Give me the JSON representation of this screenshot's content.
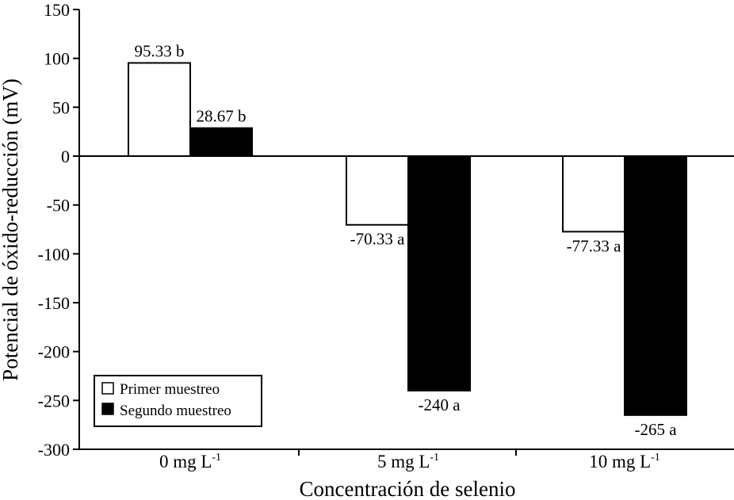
{
  "chart_data": {
    "type": "bar",
    "xlabel": "Concentración de selenio",
    "ylabel": "Potencial de óxido-reducción (mV)",
    "ylim": [
      -300,
      150
    ],
    "yticks": [
      150,
      100,
      50,
      0,
      -50,
      -100,
      -150,
      -200,
      -250,
      -300
    ],
    "grid": false,
    "legend_position": "bottom-left",
    "categories": [
      {
        "base": "0 mg L",
        "sup": "-1"
      },
      {
        "base": "5 mg L",
        "sup": "-1"
      },
      {
        "base": "10 mg L",
        "sup": "-1"
      }
    ],
    "series": [
      {
        "name": "Primer muestreo",
        "color": "#ffffff",
        "values": [
          95.33,
          -70.33,
          -77.33
        ],
        "labels": [
          "95.33 b",
          "-70.33 a",
          "-77.33 a"
        ]
      },
      {
        "name": "Segundo muestreo",
        "color": "#000000",
        "values": [
          28.67,
          -240,
          -265
        ],
        "labels": [
          "28.67 b",
          "-240 a",
          "-265 a"
        ]
      }
    ]
  }
}
